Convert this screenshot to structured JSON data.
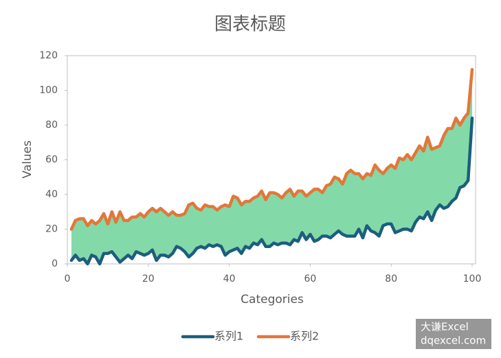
{
  "chart_data": {
    "type": "line",
    "title": "图表标题",
    "x_label": "Categories",
    "y_label": "Values",
    "x": [
      1,
      2,
      3,
      4,
      5,
      6,
      7,
      8,
      9,
      10,
      11,
      12,
      13,
      14,
      15,
      16,
      17,
      18,
      19,
      20,
      21,
      22,
      23,
      24,
      25,
      26,
      27,
      28,
      29,
      30,
      31,
      32,
      33,
      34,
      35,
      36,
      37,
      38,
      39,
      40,
      41,
      42,
      43,
      44,
      45,
      46,
      47,
      48,
      49,
      50,
      51,
      52,
      53,
      54,
      55,
      56,
      57,
      58,
      59,
      60,
      61,
      62,
      63,
      64,
      65,
      66,
      67,
      68,
      69,
      70,
      71,
      72,
      73,
      74,
      75,
      76,
      77,
      78,
      79,
      80,
      81,
      82,
      83,
      84,
      85,
      86,
      87,
      88,
      89,
      90,
      91,
      92,
      93,
      94,
      95,
      96,
      97,
      98,
      99,
      100
    ],
    "series": [
      {
        "name": "系列1",
        "color": "#1b5e7e",
        "values": [
          2,
          5,
          2,
          3,
          0,
          5,
          4,
          0,
          6,
          6,
          7,
          4,
          1,
          3,
          5,
          3,
          7,
          6,
          5,
          6,
          8,
          2,
          5,
          5,
          4,
          6,
          10,
          9,
          7,
          4,
          6,
          9,
          10,
          9,
          11,
          10,
          11,
          10,
          5,
          7,
          8,
          9,
          6,
          10,
          9,
          12,
          11,
          14,
          10,
          10,
          12,
          11,
          12,
          12,
          11,
          14,
          13,
          18,
          14,
          17,
          13,
          14,
          16,
          16,
          15,
          17,
          19,
          17,
          16,
          16,
          16,
          20,
          15,
          22,
          19,
          18,
          16,
          22,
          23,
          23,
          18,
          19,
          20,
          20,
          19,
          24,
          27,
          26,
          30,
          25,
          31,
          34,
          32,
          33,
          36,
          38,
          44,
          45,
          48,
          84
        ]
      },
      {
        "name": "系列2",
        "color": "#e2773a",
        "values": [
          20,
          25,
          26,
          26,
          22,
          25,
          23,
          25,
          29,
          23,
          30,
          24,
          30,
          25,
          25,
          27,
          27,
          29,
          27,
          30,
          32,
          30,
          32,
          30,
          28,
          30,
          28,
          28,
          29,
          34,
          35,
          32,
          31,
          34,
          33,
          33,
          31,
          33,
          34,
          33,
          39,
          38,
          34,
          36,
          36,
          38,
          39,
          42,
          37,
          41,
          41,
          40,
          38,
          41,
          43,
          39,
          42,
          42,
          39,
          41,
          43,
          43,
          41,
          45,
          46,
          50,
          49,
          46,
          52,
          54,
          52,
          52,
          49,
          52,
          51,
          57,
          54,
          52,
          55,
          57,
          55,
          61,
          60,
          63,
          60,
          64,
          68,
          65,
          73,
          66,
          67,
          68,
          74,
          78,
          78,
          84,
          80,
          84,
          87,
          112
        ]
      }
    ],
    "fill_between_color": "#84d9a8",
    "xlim": [
      0,
      100
    ],
    "xticks": [
      0,
      20,
      40,
      60,
      80,
      100
    ],
    "ylim": [
      0,
      120
    ],
    "yticks": [
      0,
      20,
      40,
      60,
      80,
      100,
      120
    ],
    "grid": false,
    "legend": "bottom",
    "watermark": [
      "大谦Excel",
      "dqexcel.com"
    ]
  }
}
